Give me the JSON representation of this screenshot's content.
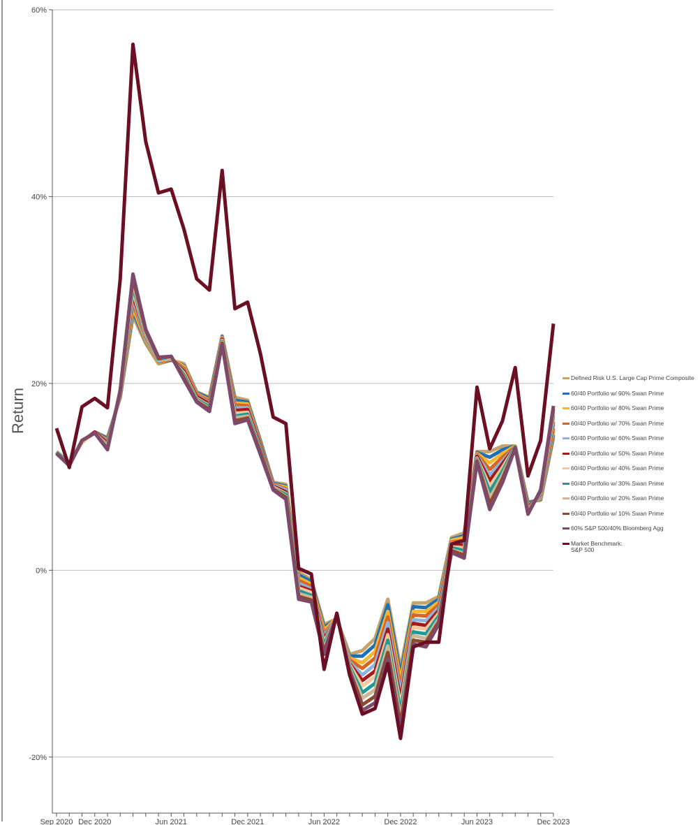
{
  "chart_data": {
    "type": "line",
    "y_label": "Return",
    "categories": [
      "Sep 2020",
      null,
      null,
      "Dec 2020",
      null,
      null,
      null,
      null,
      null,
      "Jun 2021",
      null,
      null,
      null,
      null,
      null,
      "Dec 2021",
      null,
      null,
      null,
      null,
      null,
      "Jun 2022",
      null,
      null,
      null,
      null,
      null,
      "Dec 2022",
      null,
      null,
      null,
      null,
      null,
      "Jun 2023",
      null,
      null,
      null,
      null,
      null,
      "Dec 2023"
    ],
    "series": [
      {
        "name": "Defined Risk U.S. Large Cap Prime Composite",
        "color": "#c4a46b",
        "values": [
          12.7,
          11.5,
          13.7,
          14.8,
          14.2,
          18.5,
          27.2,
          24.3,
          22.1,
          22.5,
          22.1,
          19.1,
          18.5,
          25.1,
          18.5,
          18.2,
          13.9,
          9.4,
          9.2,
          -0.2,
          -1.0,
          -5.8,
          -5.2,
          -9.0,
          -8.6,
          -7.3,
          -3.1,
          -10.5,
          -3.5,
          -3.5,
          -2.8,
          3.5,
          4.0,
          12.7,
          12.7,
          13.3,
          13.3,
          7.3,
          7.5,
          14.2
        ]
      },
      {
        "name": "60/40 Portfolio w/ 90% Swan Prime",
        "color": "#1f6fb5",
        "values": [
          12.7,
          11.5,
          13.7,
          14.8,
          14.1,
          18.6,
          27.7,
          24.5,
          22.2,
          22.5,
          21.9,
          19.0,
          18.4,
          25.0,
          18.2,
          18.0,
          13.8,
          9.3,
          9.0,
          -0.5,
          -1.2,
          -6.1,
          -5.2,
          -9.2,
          -9.2,
          -8.0,
          -3.7,
          -11.2,
          -3.9,
          -4.0,
          -3.1,
          3.3,
          3.7,
          12.6,
          12.1,
          12.9,
          13.3,
          7.2,
          7.6,
          14.5
        ]
      },
      {
        "name": "60/40 Portfolio w/ 80% Swan Prime",
        "color": "#f5b731",
        "values": [
          12.7,
          11.4,
          13.7,
          14.8,
          13.9,
          18.7,
          28.1,
          24.6,
          22.2,
          22.6,
          21.8,
          18.9,
          18.2,
          24.9,
          17.9,
          17.8,
          13.6,
          9.2,
          8.9,
          -0.8,
          -1.5,
          -6.4,
          -5.1,
          -9.4,
          -9.9,
          -8.7,
          -4.4,
          -11.8,
          -4.4,
          -4.4,
          -3.4,
          3.2,
          3.5,
          12.5,
          11.5,
          12.5,
          13.3,
          7.0,
          7.7,
          14.9
        ]
      },
      {
        "name": "60/40 Portfolio w/ 70% Swan Prime",
        "color": "#d9651e",
        "values": [
          12.6,
          11.4,
          13.8,
          14.8,
          13.8,
          18.7,
          28.6,
          24.8,
          22.3,
          22.6,
          21.6,
          18.8,
          18.1,
          24.8,
          17.7,
          17.6,
          13.5,
          9.2,
          8.7,
          -1.1,
          -1.7,
          -6.8,
          -5.1,
          -9.6,
          -10.5,
          -9.4,
          -5.0,
          -12.5,
          -4.8,
          -4.9,
          -3.7,
          3.0,
          3.2,
          12.4,
          10.8,
          12.1,
          13.2,
          6.9,
          7.8,
          15.2
        ]
      },
      {
        "name": "60/40 Portfolio w/ 60% Swan Prime",
        "color": "#8fb3dd",
        "values": [
          12.6,
          11.4,
          13.8,
          14.8,
          13.7,
          18.8,
          29.0,
          24.9,
          22.4,
          22.7,
          21.4,
          18.7,
          17.9,
          24.7,
          17.4,
          17.4,
          13.3,
          9.1,
          8.6,
          -1.4,
          -2.0,
          -7.1,
          -5.0,
          -9.8,
          -11.2,
          -10.1,
          -5.6,
          -13.2,
          -5.3,
          -5.4,
          -4.0,
          2.9,
          2.9,
          12.3,
          10.2,
          11.7,
          13.2,
          6.8,
          7.9,
          15.6
        ]
      },
      {
        "name": "60/40 Portfolio w/ 50% Swan Prime",
        "color": "#a31a1a",
        "values": [
          12.6,
          11.3,
          13.8,
          14.8,
          13.6,
          18.9,
          29.5,
          25.1,
          22.5,
          22.7,
          21.3,
          18.6,
          17.8,
          24.7,
          17.1,
          17.2,
          13.2,
          9.0,
          8.4,
          -1.7,
          -2.2,
          -7.4,
          -5.0,
          -10.0,
          -11.8,
          -10.8,
          -6.3,
          -13.9,
          -5.7,
          -5.9,
          -4.3,
          2.7,
          2.7,
          12.2,
          9.6,
          11.4,
          13.2,
          6.7,
          8.1,
          15.9
        ]
      },
      {
        "name": "60/40 Portfolio w/ 40% Swan Prime",
        "color": "#f5c79e",
        "values": [
          12.6,
          11.3,
          13.8,
          14.7,
          13.4,
          19.0,
          29.9,
          25.2,
          22.5,
          22.7,
          21.1,
          18.4,
          17.6,
          24.6,
          16.8,
          16.9,
          13.0,
          8.9,
          8.2,
          -1.9,
          -2.4,
          -7.7,
          -4.9,
          -10.1,
          -12.4,
          -11.4,
          -6.9,
          -14.5,
          -6.1,
          -6.3,
          -4.6,
          2.5,
          2.4,
          12.0,
          9.0,
          11.0,
          13.2,
          6.5,
          8.2,
          16.2
        ]
      },
      {
        "name": "60/40 Portfolio w/ 30% Swan Prime",
        "color": "#1e9a94",
        "values": [
          12.6,
          11.3,
          13.9,
          14.7,
          13.3,
          19.1,
          30.4,
          25.4,
          22.6,
          22.8,
          20.9,
          18.3,
          17.5,
          24.5,
          16.5,
          16.7,
          12.9,
          8.8,
          8.1,
          -2.2,
          -2.7,
          -8.0,
          -4.9,
          -10.3,
          -13.1,
          -12.1,
          -7.5,
          -15.2,
          -6.6,
          -6.8,
          -4.9,
          2.4,
          2.1,
          11.9,
          8.4,
          10.6,
          13.2,
          6.4,
          8.3,
          16.6
        ]
      },
      {
        "name": "60/40 Portfolio w/ 20% Swan Prime",
        "color": "#cdb59b",
        "values": [
          12.5,
          11.3,
          13.9,
          14.7,
          13.2,
          19.1,
          30.8,
          25.5,
          22.7,
          22.8,
          20.7,
          18.2,
          17.3,
          24.4,
          16.3,
          16.5,
          12.7,
          8.8,
          7.9,
          -2.5,
          -2.9,
          -8.4,
          -4.8,
          -10.5,
          -13.7,
          -12.8,
          -8.1,
          -15.9,
          -7.0,
          -7.3,
          -5.2,
          2.2,
          1.8,
          11.8,
          7.7,
          10.2,
          13.1,
          6.3,
          8.4,
          16.9
        ]
      },
      {
        "name": "60/40 Portfolio w/ 10% Swan Prime",
        "color": "#8b4a2b",
        "values": [
          12.5,
          11.2,
          13.9,
          14.7,
          13.0,
          19.2,
          31.3,
          25.7,
          22.7,
          22.9,
          20.6,
          18.1,
          17.2,
          24.3,
          16.0,
          16.3,
          12.6,
          8.7,
          7.8,
          -2.8,
          -3.2,
          -8.7,
          -4.8,
          -10.7,
          -14.4,
          -13.5,
          -8.8,
          -16.5,
          -7.5,
          -7.7,
          -5.5,
          2.1,
          1.6,
          11.7,
          7.1,
          9.8,
          13.1,
          6.1,
          8.5,
          17.3
        ]
      },
      {
        "name": "60% S&P 500/40% Bloomberg Agg",
        "color": "#7d4a6a",
        "values": [
          12.5,
          11.2,
          13.9,
          14.7,
          12.9,
          19.3,
          31.7,
          25.8,
          22.8,
          22.9,
          20.4,
          18.0,
          17.0,
          24.2,
          15.7,
          16.1,
          12.4,
          8.6,
          7.6,
          -3.1,
          -3.4,
          -9.0,
          -4.7,
          -10.9,
          -15.0,
          -14.2,
          -9.4,
          -17.2,
          -7.9,
          -8.2,
          -5.8,
          1.9,
          1.3,
          11.6,
          6.5,
          9.4,
          13.1,
          6.0,
          8.6,
          17.6
        ]
      },
      {
        "name": "Market Benchmark:\nS&P 500",
        "color": "#6b0f24",
        "values": [
          15.2,
          11.0,
          17.5,
          18.4,
          17.4,
          31.2,
          56.3,
          45.9,
          40.4,
          40.8,
          36.5,
          31.2,
          30.0,
          42.8,
          28.0,
          28.7,
          23.2,
          16.4,
          15.7,
          0.2,
          -0.4,
          -10.6,
          -4.6,
          -11.2,
          -15.4,
          -14.8,
          -10.0,
          -18.0,
          -8.2,
          -7.7,
          -7.7,
          2.8,
          3.2,
          19.6,
          13.0,
          16.0,
          21.7,
          10.1,
          13.9,
          26.4
        ]
      }
    ],
    "ylim": [
      -26,
      60
    ],
    "yticks": [
      {
        "value": -20,
        "label": "-20%"
      },
      {
        "value": 0,
        "label": "0%"
      },
      {
        "value": 20,
        "label": "20%"
      },
      {
        "value": 40,
        "label": "40%"
      },
      {
        "value": 60,
        "label": "60%"
      }
    ],
    "grid": true,
    "legend": "right"
  }
}
